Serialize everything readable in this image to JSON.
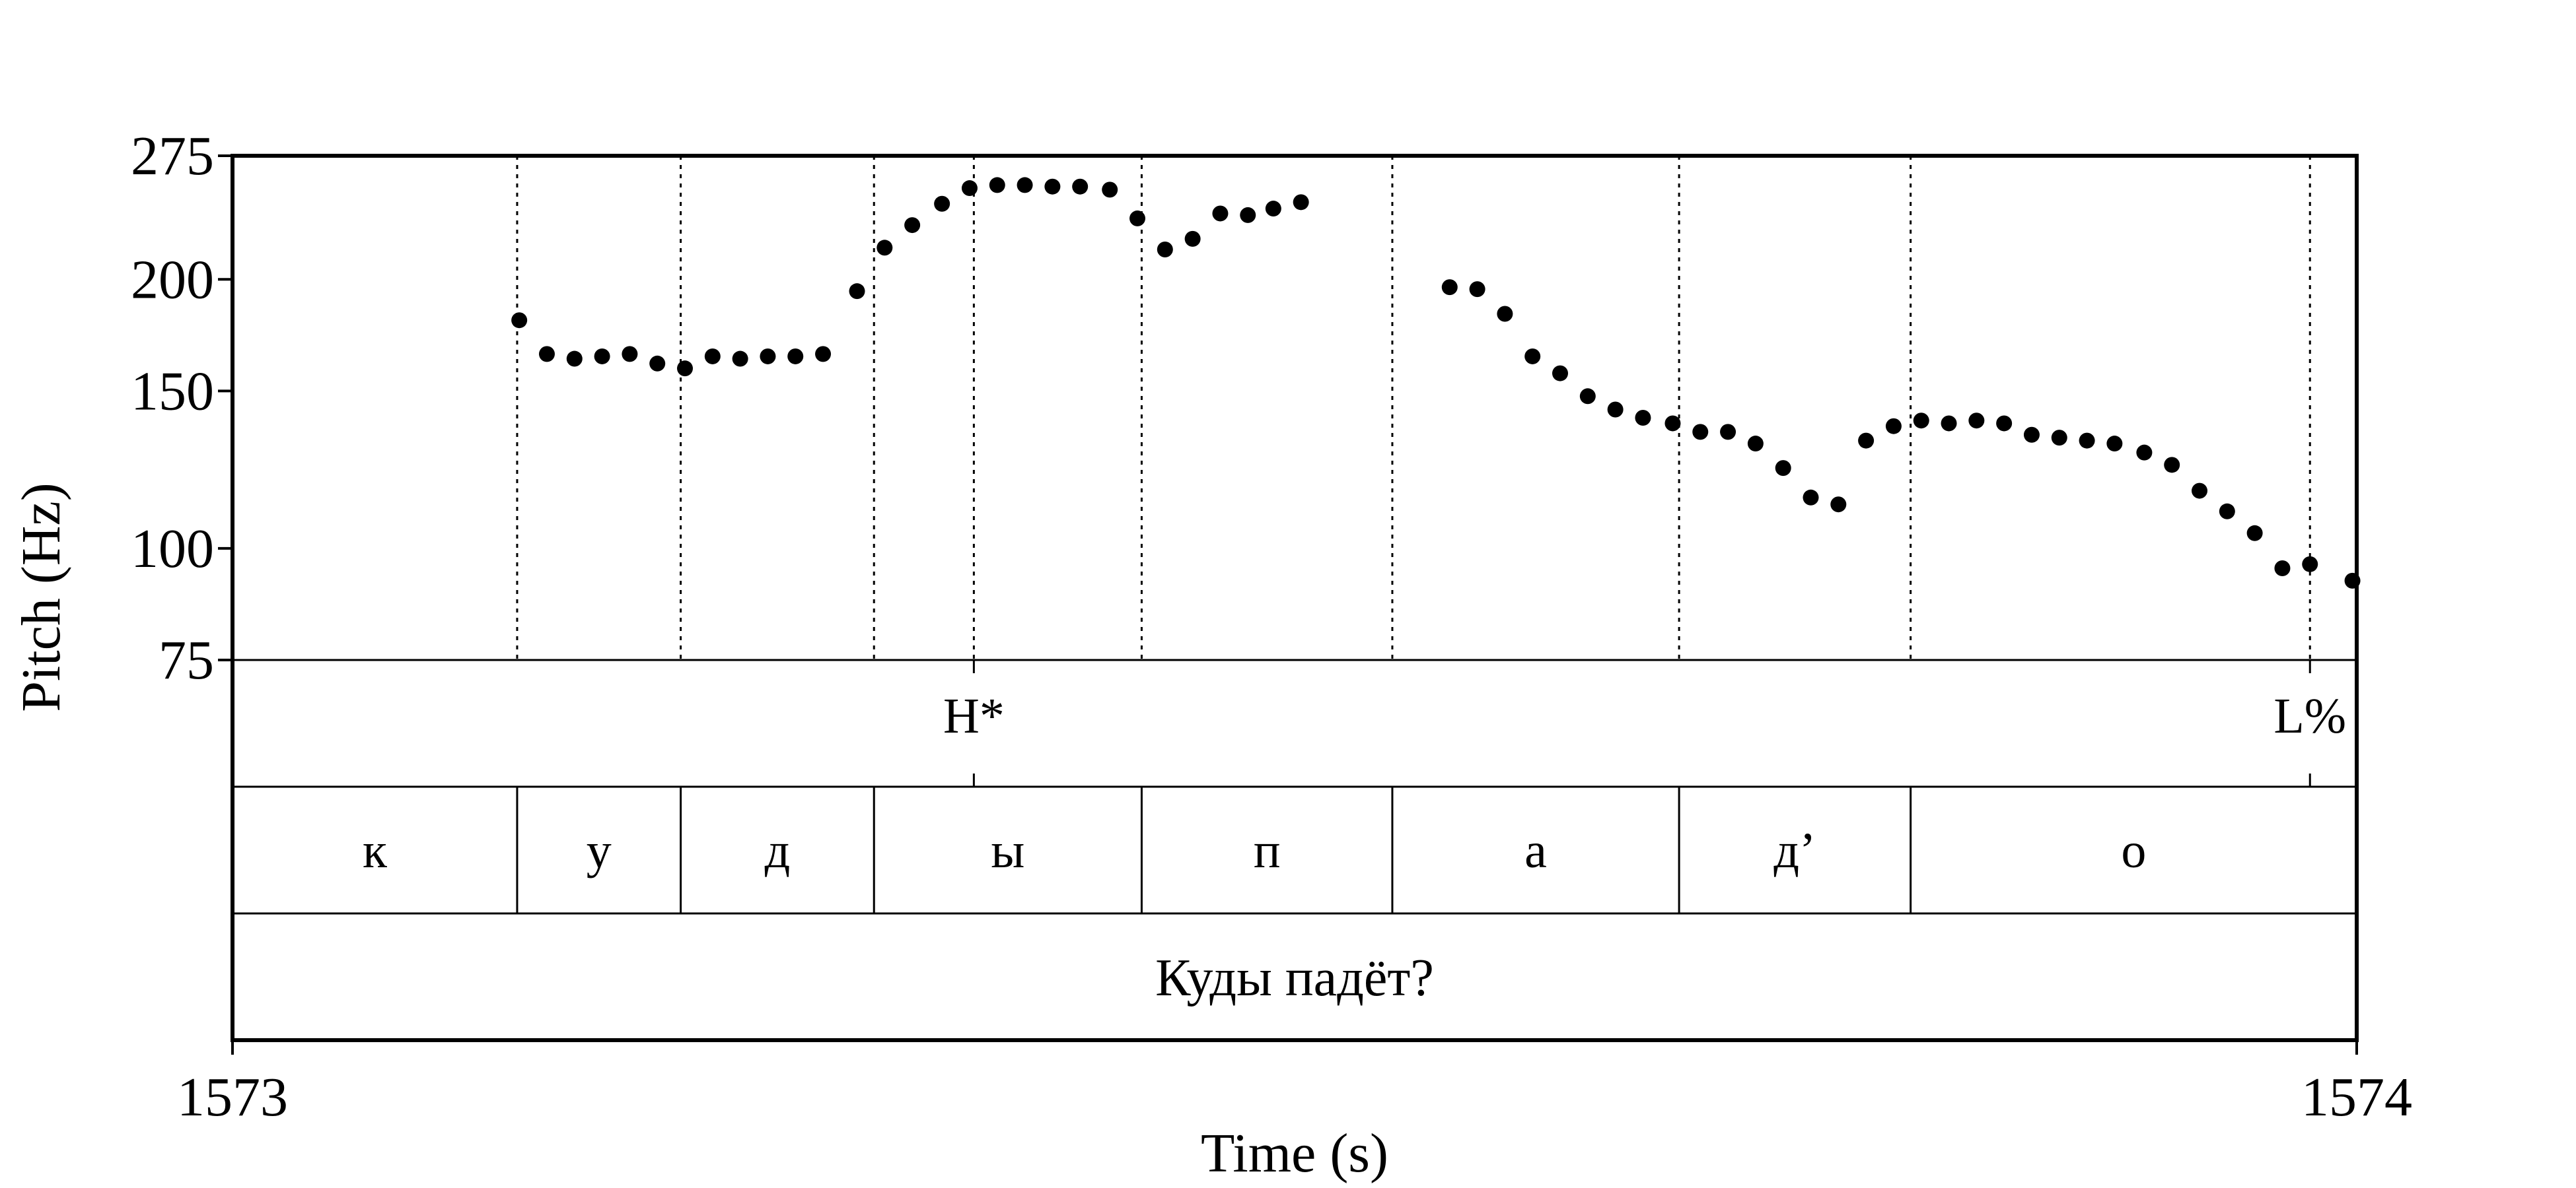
{
  "chart_data": {
    "type": "scatter",
    "ylabel": "Pitch (Hz)",
    "xlabel": "Time (s)",
    "y_scale": "log",
    "ylim": [
      75,
      275
    ],
    "xlim": [
      1573,
      1574
    ],
    "y_ticks": [
      "275",
      "200",
      "150",
      "100",
      "75"
    ],
    "x_tick_labels": [
      "1573",
      "1574"
    ],
    "pitch_points": [
      {
        "x": 1573.135,
        "y": 180
      },
      {
        "x": 1573.148,
        "y": 165
      },
      {
        "x": 1573.161,
        "y": 163
      },
      {
        "x": 1573.174,
        "y": 164
      },
      {
        "x": 1573.187,
        "y": 165
      },
      {
        "x": 1573.2,
        "y": 161
      },
      {
        "x": 1573.213,
        "y": 159
      },
      {
        "x": 1573.226,
        "y": 164
      },
      {
        "x": 1573.239,
        "y": 163
      },
      {
        "x": 1573.252,
        "y": 164
      },
      {
        "x": 1573.265,
        "y": 164
      },
      {
        "x": 1573.278,
        "y": 165
      },
      {
        "x": 1573.294,
        "y": 194
      },
      {
        "x": 1573.307,
        "y": 217
      },
      {
        "x": 1573.32,
        "y": 230
      },
      {
        "x": 1573.334,
        "y": 243
      },
      {
        "x": 1573.347,
        "y": 253
      },
      {
        "x": 1573.36,
        "y": 255
      },
      {
        "x": 1573.373,
        "y": 255
      },
      {
        "x": 1573.386,
        "y": 254
      },
      {
        "x": 1573.399,
        "y": 254
      },
      {
        "x": 1573.413,
        "y": 252
      },
      {
        "x": 1573.426,
        "y": 234
      },
      {
        "x": 1573.439,
        "y": 216
      },
      {
        "x": 1573.452,
        "y": 222
      },
      {
        "x": 1573.465,
        "y": 237
      },
      {
        "x": 1573.478,
        "y": 236
      },
      {
        "x": 1573.49,
        "y": 240
      },
      {
        "x": 1573.503,
        "y": 244
      },
      {
        "x": 1573.573,
        "y": 196
      },
      {
        "x": 1573.586,
        "y": 195
      },
      {
        "x": 1573.599,
        "y": 183
      },
      {
        "x": 1573.612,
        "y": 164
      },
      {
        "x": 1573.625,
        "y": 157
      },
      {
        "x": 1573.638,
        "y": 148
      },
      {
        "x": 1573.651,
        "y": 143
      },
      {
        "x": 1573.664,
        "y": 140
      },
      {
        "x": 1573.678,
        "y": 138
      },
      {
        "x": 1573.691,
        "y": 135
      },
      {
        "x": 1573.704,
        "y": 135
      },
      {
        "x": 1573.717,
        "y": 131
      },
      {
        "x": 1573.73,
        "y": 123
      },
      {
        "x": 1573.743,
        "y": 114
      },
      {
        "x": 1573.756,
        "y": 112
      },
      {
        "x": 1573.769,
        "y": 132
      },
      {
        "x": 1573.782,
        "y": 137
      },
      {
        "x": 1573.795,
        "y": 139
      },
      {
        "x": 1573.808,
        "y": 138
      },
      {
        "x": 1573.821,
        "y": 139
      },
      {
        "x": 1573.834,
        "y": 138
      },
      {
        "x": 1573.847,
        "y": 134
      },
      {
        "x": 1573.86,
        "y": 133
      },
      {
        "x": 1573.873,
        "y": 132
      },
      {
        "x": 1573.886,
        "y": 131
      },
      {
        "x": 1573.9,
        "y": 128
      },
      {
        "x": 1573.913,
        "y": 124
      },
      {
        "x": 1573.926,
        "y": 116
      },
      {
        "x": 1573.939,
        "y": 110
      },
      {
        "x": 1573.952,
        "y": 104
      },
      {
        "x": 1573.965,
        "y": 95
      },
      {
        "x": 1573.978,
        "y": 96
      },
      {
        "x": 1573.998,
        "y": 92
      }
    ],
    "tone_tier": [
      {
        "label": "H*",
        "time": 1573.349
      },
      {
        "label": "L%",
        "time": 1573.978
      }
    ],
    "segment_tier": [
      {
        "label": "к",
        "start": 1573.0,
        "end": 1573.134
      },
      {
        "label": "у",
        "start": 1573.134,
        "end": 1573.211
      },
      {
        "label": "д",
        "start": 1573.211,
        "end": 1573.302
      },
      {
        "label": "ы",
        "start": 1573.302,
        "end": 1573.428
      },
      {
        "label": "п",
        "start": 1573.428,
        "end": 1573.546
      },
      {
        "label": "а",
        "start": 1573.546,
        "end": 1573.681
      },
      {
        "label": "д’",
        "start": 1573.681,
        "end": 1573.79
      },
      {
        "label": "о",
        "start": 1573.79,
        "end": 1574.0
      }
    ],
    "phrase_tier": [
      {
        "label": "Куды падёт?",
        "start": 1573.0,
        "end": 1574.0
      }
    ]
  }
}
